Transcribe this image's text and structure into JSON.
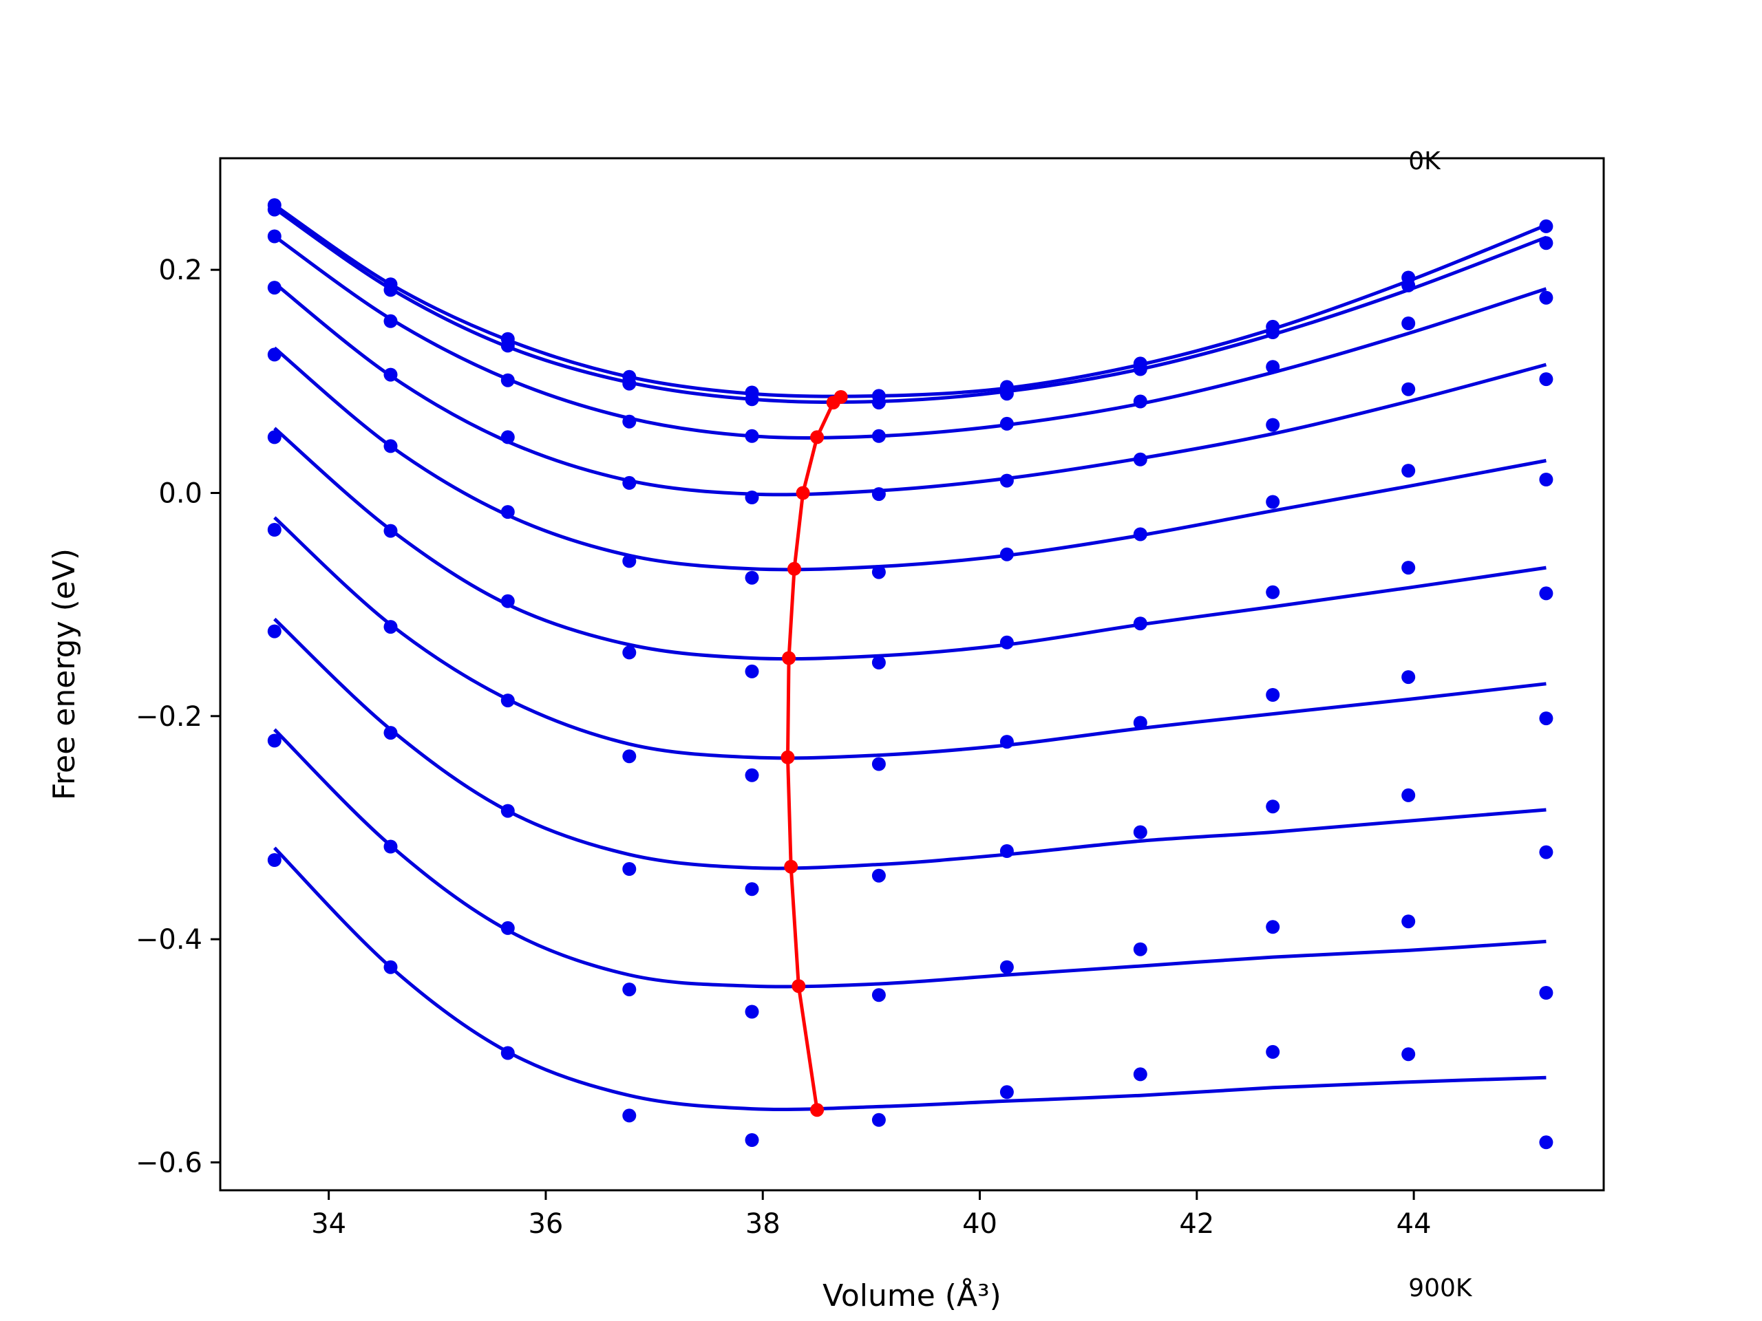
{
  "chart_data": {
    "type": "line",
    "title": "",
    "xlabel": "Volume (Å³)",
    "ylabel": "Free energy (eV)",
    "xlim": [
      33.0,
      45.75
    ],
    "ylim": [
      -0.625,
      0.3
    ],
    "xticks": [
      34,
      36,
      38,
      40,
      42,
      44
    ],
    "yticks": [
      0.2,
      0.0,
      -0.2,
      -0.4,
      -0.6
    ],
    "xtick_labels": [
      "34",
      "36",
      "38",
      "40",
      "42",
      "44"
    ],
    "ytick_labels": [
      "0.2",
      "0.0",
      "−0.2",
      "−0.4",
      "−0.6"
    ],
    "grid": false,
    "annotations": [
      {
        "text": "0K",
        "x": 43.95,
        "y": 0.29
      },
      {
        "text": "900K",
        "x": 43.95,
        "y": -0.72
      }
    ],
    "colors": {
      "points": "#0000ee",
      "fit": "#0000dd",
      "minimum": "#ff0000"
    },
    "volumes": [
      33.5,
      34.57,
      35.65,
      36.77,
      37.9,
      39.07,
      40.25,
      41.48,
      42.7,
      43.95,
      45.22
    ],
    "series": [
      {
        "points": [
          0.258,
          0.187,
          0.138,
          0.104,
          0.09,
          0.087,
          0.095,
          0.116,
          0.149,
          0.193,
          0.239
        ],
        "fit": [
          0.258,
          0.187,
          0.137,
          0.104,
          0.089,
          0.087,
          0.094,
          0.115,
          0.147,
          0.19,
          0.24
        ]
      },
      {
        "points": [
          0.254,
          0.182,
          0.132,
          0.098,
          0.084,
          0.081,
          0.089,
          0.111,
          0.144,
          0.186,
          0.224
        ],
        "fit": [
          0.255,
          0.183,
          0.131,
          0.099,
          0.084,
          0.082,
          0.091,
          0.111,
          0.142,
          0.182,
          0.229
        ]
      },
      {
        "points": [
          0.23,
          0.154,
          0.101,
          0.064,
          0.051,
          0.051,
          0.062,
          0.082,
          0.113,
          0.152,
          0.175
        ],
        "fit": [
          0.23,
          0.156,
          0.102,
          0.067,
          0.051,
          0.051,
          0.061,
          0.08,
          0.108,
          0.143,
          0.183
        ]
      },
      {
        "points": [
          0.184,
          0.106,
          0.05,
          0.009,
          -0.004,
          -0.001,
          0.011,
          0.03,
          0.061,
          0.093,
          0.102
        ],
        "fit": [
          0.188,
          0.105,
          0.046,
          0.011,
          -0.001,
          0.002,
          0.013,
          0.031,
          0.053,
          0.082,
          0.115
        ]
      },
      {
        "points": [
          0.124,
          0.042,
          -0.017,
          -0.061,
          -0.076,
          -0.071,
          -0.055,
          -0.037,
          -0.008,
          0.02,
          0.012
        ],
        "fit": [
          0.13,
          0.042,
          -0.02,
          -0.056,
          -0.068,
          -0.066,
          -0.056,
          -0.038,
          -0.016,
          0.006,
          0.029
        ]
      },
      {
        "points": [
          0.05,
          -0.034,
          -0.097,
          -0.143,
          -0.16,
          -0.152,
          -0.134,
          -0.117,
          -0.089,
          -0.067,
          -0.09
        ],
        "fit": [
          0.058,
          -0.033,
          -0.1,
          -0.136,
          -0.148,
          -0.146,
          -0.136,
          -0.118,
          -0.102,
          -0.085,
          -0.067
        ]
      },
      {
        "points": [
          -0.033,
          -0.12,
          -0.186,
          -0.236,
          -0.253,
          -0.243,
          -0.223,
          -0.206,
          -0.181,
          -0.165,
          -0.202
        ],
        "fit": [
          -0.022,
          -0.118,
          -0.185,
          -0.225,
          -0.237,
          -0.235,
          -0.226,
          -0.211,
          -0.198,
          -0.185,
          -0.171
        ]
      },
      {
        "points": [
          -0.124,
          -0.215,
          -0.285,
          -0.337,
          -0.355,
          -0.343,
          -0.321,
          -0.304,
          -0.281,
          -0.271,
          -0.322
        ],
        "fit": [
          -0.113,
          -0.212,
          -0.285,
          -0.324,
          -0.336,
          -0.333,
          -0.324,
          -0.312,
          -0.304,
          -0.294,
          -0.284
        ]
      },
      {
        "points": [
          -0.222,
          -0.317,
          -0.39,
          -0.445,
          -0.465,
          -0.45,
          -0.425,
          -0.409,
          -0.389,
          -0.384,
          -0.448
        ],
        "fit": [
          -0.212,
          -0.316,
          -0.392,
          -0.432,
          -0.442,
          -0.44,
          -0.432,
          -0.424,
          -0.416,
          -0.41,
          -0.402
        ]
      },
      {
        "points": [
          -0.329,
          -0.425,
          -0.502,
          -0.558,
          -0.58,
          -0.562,
          -0.537,
          -0.521,
          -0.501,
          -0.503,
          -0.582
        ],
        "fit": [
          -0.318,
          -0.425,
          -0.501,
          -0.54,
          -0.552,
          -0.55,
          -0.545,
          -0.54,
          -0.533,
          -0.528,
          -0.524
        ]
      }
    ],
    "minimum_curve": {
      "x": [
        38.72,
        38.65,
        38.5,
        38.37,
        38.29,
        38.24,
        38.23,
        38.26,
        38.33,
        38.5
      ],
      "y": [
        0.086,
        0.081,
        0.05,
        0.0,
        -0.068,
        -0.148,
        -0.237,
        -0.335,
        -0.442,
        -0.553
      ]
    }
  }
}
